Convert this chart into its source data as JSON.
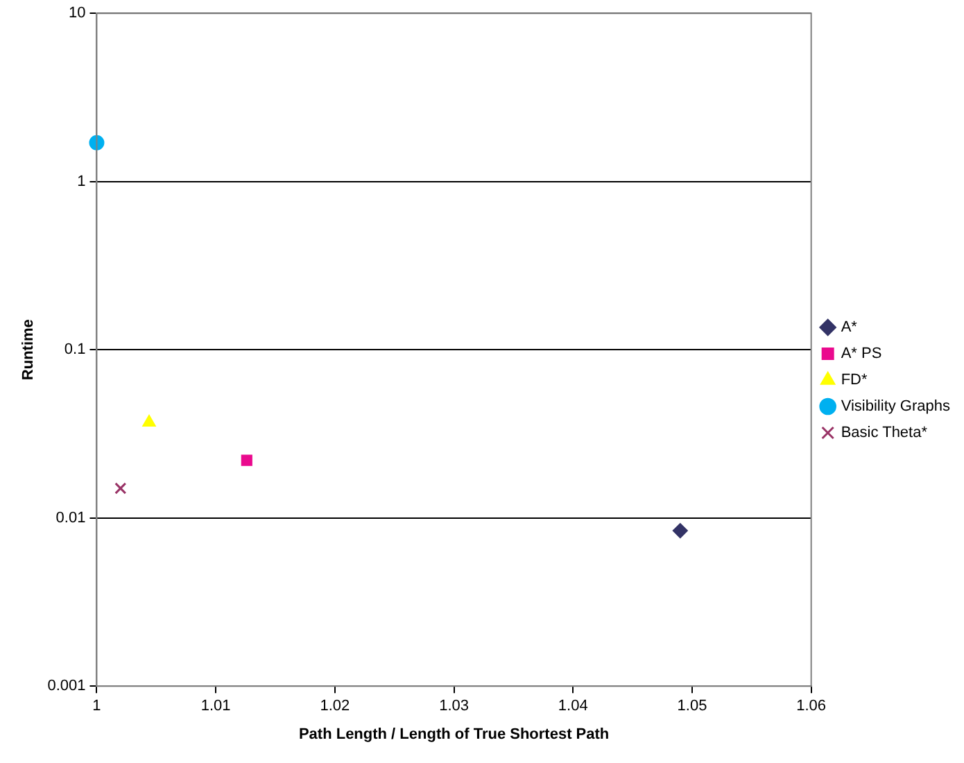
{
  "chart_data": {
    "type": "scatter",
    "xlabel": "Path Length / Length of True Shortest Path",
    "ylabel": "Runtime",
    "log": "y",
    "grid": "y",
    "legend": "right",
    "xlim": [
      1,
      1.06
    ],
    "xticks": [
      1,
      1.01,
      1.02,
      1.03,
      1.04,
      1.05,
      1.06
    ],
    "ylim": [
      0.001,
      10
    ],
    "yticks": [
      0.001,
      0.01,
      0.1,
      1,
      10
    ],
    "series": [
      {
        "name": "A*",
        "color": "#333366",
        "marker": "diamond",
        "x": [
          1.049
        ],
        "values": [
          0.0084
        ]
      },
      {
        "name": "A* PS",
        "color": "#ea0a8e",
        "marker": "square",
        "x": [
          1.0126
        ],
        "values": [
          0.022
        ]
      },
      {
        "name": "FD*",
        "color": "#ffff00",
        "marker": "triangle",
        "x": [
          1.0044
        ],
        "values": [
          0.037
        ]
      },
      {
        "name": "Visibility Graphs",
        "color": "#00b0f0",
        "marker": "circle",
        "x": [
          1.0
        ],
        "values": [
          1.7
        ]
      },
      {
        "name": "Basic Theta*",
        "color": "#993366",
        "marker": "cross",
        "x": [
          1.002
        ],
        "values": [
          0.015
        ]
      }
    ]
  }
}
